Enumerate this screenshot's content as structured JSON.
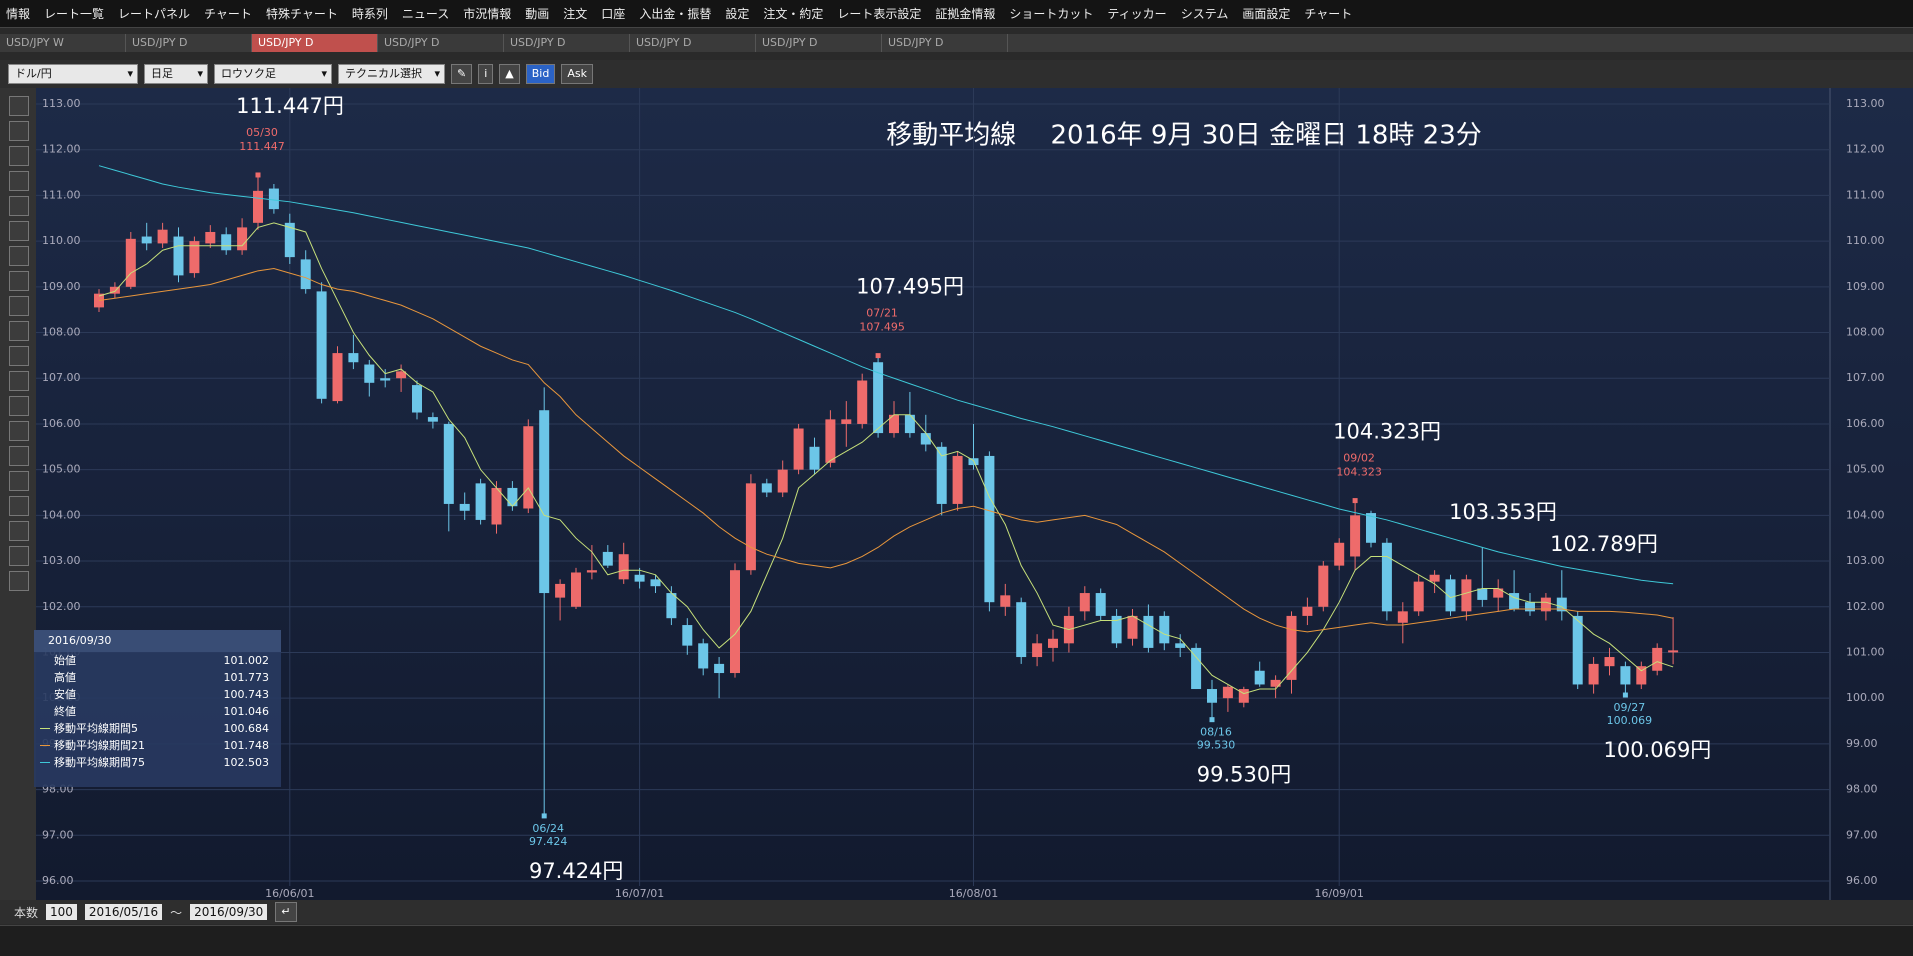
{
  "menu": [
    "情報",
    "レート一覧",
    "レートパネル",
    "チャート",
    "特殊チャート",
    "時系列",
    "ニュース",
    "市況情報",
    "動画",
    "注文",
    "口座",
    "入出金・振替",
    "設定",
    "注文・約定",
    "レート表示設定",
    "証拠金情報",
    "ショートカット",
    "ティッカー",
    "システム",
    "画面設定",
    "チャート"
  ],
  "tabs": [
    "USD/JPY W",
    "USD/JPY D",
    "USD/JPY D",
    "USD/JPY D",
    "USD/JPY D",
    "USD/JPY D",
    "USD/JPY D",
    "USD/JPY D"
  ],
  "toolbar": {
    "pair": "ドル/円",
    "period": "日足",
    "chart_kind": "ロウソク足",
    "technical": "テクニカル選択",
    "bid": "Bid",
    "ask": "Ask"
  },
  "chart_data": {
    "type": "candlestick",
    "title": "移動平均線　 2016年 9月 30日 金曜日 18時 23分",
    "categories": [
      null,
      null,
      null,
      null,
      null,
      null,
      null,
      null,
      null,
      null,
      null,
      null,
      "16/06/01",
      null,
      null,
      null,
      null,
      null,
      null,
      null,
      null,
      null,
      null,
      null,
      null,
      null,
      null,
      null,
      null,
      null,
      null,
      null,
      null,
      null,
      "16/07/01",
      null,
      null,
      null,
      null,
      null,
      null,
      null,
      null,
      null,
      null,
      null,
      null,
      null,
      null,
      null,
      null,
      null,
      null,
      null,
      null,
      "16/08/01",
      null,
      null,
      null,
      null,
      null,
      null,
      null,
      null,
      null,
      null,
      null,
      null,
      null,
      null,
      null,
      null,
      null,
      null,
      null,
      null,
      null,
      null,
      "16/09/01",
      null,
      null,
      null,
      null,
      null,
      null,
      null,
      null,
      null,
      null,
      null,
      null,
      null,
      null,
      null,
      null,
      null,
      null,
      null,
      null,
      null
    ],
    "open": [
      108.55,
      108.85,
      109.0,
      110.1,
      109.95,
      110.1,
      109.3,
      109.95,
      110.15,
      109.8,
      110.4,
      111.15,
      110.4,
      109.6,
      108.9,
      106.5,
      107.55,
      107.3,
      107.0,
      107.0,
      106.85,
      106.15,
      106.0,
      104.25,
      104.7,
      103.8,
      104.6,
      104.15,
      106.3,
      102.2,
      102.0,
      102.75,
      103.2,
      102.6,
      102.7,
      102.6,
      102.3,
      101.6,
      101.2,
      100.75,
      100.55,
      102.8,
      104.7,
      104.5,
      105.0,
      105.5,
      105.15,
      106.0,
      106.0,
      107.35,
      105.8,
      106.2,
      105.8,
      105.5,
      104.25,
      105.25,
      105.3,
      102.0,
      102.1,
      100.9,
      101.1,
      101.2,
      101.9,
      102.3,
      101.8,
      101.3,
      101.8,
      101.8,
      101.2,
      101.1,
      100.2,
      100.0,
      99.9,
      100.6,
      100.25,
      100.4,
      101.8,
      102.0,
      102.9,
      103.1,
      104.05,
      103.4,
      101.65,
      101.9,
      102.55,
      102.6,
      101.9,
      102.4,
      102.2,
      102.3,
      102.1,
      101.9,
      102.2,
      101.8,
      100.3,
      100.7,
      100.7,
      100.3,
      100.6,
      101.002
    ],
    "high": [
      108.95,
      109.1,
      110.2,
      110.4,
      110.4,
      110.3,
      110.1,
      110.35,
      110.3,
      110.5,
      111.447,
      111.25,
      110.6,
      109.8,
      109.1,
      107.7,
      107.95,
      107.4,
      107.2,
      107.3,
      106.95,
      106.25,
      106.05,
      104.5,
      104.8,
      104.75,
      104.75,
      106.1,
      106.8,
      102.6,
      102.85,
      103.35,
      103.35,
      103.4,
      102.85,
      102.7,
      102.45,
      101.75,
      101.3,
      100.9,
      102.95,
      104.9,
      104.8,
      105.2,
      106.0,
      105.7,
      106.3,
      106.5,
      107.1,
      107.495,
      106.5,
      106.7,
      106.2,
      105.6,
      105.4,
      106.0,
      105.4,
      102.5,
      102.2,
      101.4,
      101.5,
      102.0,
      102.45,
      102.4,
      101.95,
      101.95,
      102.05,
      101.9,
      101.4,
      101.2,
      100.4,
      100.3,
      100.25,
      100.8,
      100.5,
      101.9,
      102.2,
      103.0,
      103.5,
      104.323,
      104.1,
      103.5,
      102.1,
      102.7,
      102.8,
      102.7,
      102.7,
      103.3,
      102.6,
      102.8,
      102.3,
      102.3,
      102.8,
      101.9,
      100.9,
      101.1,
      100.8,
      100.8,
      101.2,
      101.773
    ],
    "low": [
      108.45,
      108.75,
      108.95,
      109.8,
      109.85,
      109.1,
      109.2,
      109.85,
      109.7,
      109.7,
      110.25,
      110.6,
      109.5,
      108.85,
      106.45,
      106.45,
      107.2,
      106.6,
      106.8,
      106.7,
      106.1,
      105.9,
      103.65,
      103.9,
      103.8,
      103.6,
      104.1,
      104.05,
      97.424,
      101.7,
      101.95,
      102.6,
      102.85,
      102.5,
      102.4,
      102.3,
      101.6,
      100.95,
      100.5,
      100.0,
      100.45,
      102.7,
      104.4,
      104.4,
      104.9,
      104.9,
      105.05,
      105.5,
      105.9,
      105.7,
      105.7,
      105.7,
      105.4,
      104.0,
      104.1,
      105.0,
      101.9,
      101.8,
      100.75,
      100.7,
      100.8,
      101.0,
      101.7,
      101.7,
      101.1,
      101.15,
      101.0,
      101.05,
      100.9,
      100.2,
      99.53,
      99.7,
      99.8,
      100.25,
      100.0,
      100.1,
      101.6,
      101.9,
      102.8,
      102.8,
      103.3,
      101.7,
      101.2,
      101.8,
      102.3,
      101.8,
      101.7,
      102.0,
      101.9,
      101.9,
      101.8,
      101.7,
      101.7,
      100.2,
      100.1,
      100.5,
      100.069,
      100.2,
      100.5,
      100.743
    ],
    "close": [
      108.85,
      109.0,
      110.05,
      109.95,
      110.25,
      109.25,
      110.0,
      110.2,
      109.8,
      110.3,
      111.1,
      110.7,
      109.65,
      108.95,
      106.55,
      107.55,
      107.35,
      106.9,
      106.95,
      107.15,
      106.25,
      106.05,
      104.25,
      104.1,
      103.9,
      104.6,
      104.2,
      105.95,
      102.3,
      102.5,
      102.75,
      102.8,
      102.9,
      103.15,
      102.55,
      102.45,
      101.75,
      101.15,
      100.65,
      100.55,
      102.8,
      104.7,
      104.5,
      105.0,
      105.9,
      105.0,
      106.1,
      106.1,
      106.95,
      105.8,
      106.2,
      105.8,
      105.55,
      104.25,
      105.3,
      105.1,
      102.1,
      102.25,
      100.9,
      101.2,
      101.3,
      101.8,
      102.3,
      101.8,
      101.2,
      101.8,
      101.1,
      101.2,
      101.1,
      100.2,
      99.9,
      100.25,
      100.2,
      100.3,
      100.4,
      101.8,
      102.0,
      102.9,
      103.4,
      104.0,
      103.4,
      101.9,
      101.9,
      102.55,
      102.7,
      101.9,
      102.6,
      102.15,
      102.4,
      101.95,
      101.9,
      102.2,
      101.9,
      100.3,
      100.75,
      100.9,
      100.3,
      100.7,
      101.1,
      101.046
    ],
    "up_color": "#ee6b6b",
    "down_color": "#6cc6e8",
    "series": [
      {
        "name": "移動平均線期間5",
        "color": "#c6e07a",
        "values": [
          108.8,
          108.9,
          109.3,
          109.5,
          109.8,
          109.9,
          109.9,
          109.9,
          109.9,
          109.9,
          110.3,
          110.4,
          110.3,
          110.2,
          109.4,
          108.7,
          108.0,
          107.5,
          107.1,
          107.2,
          106.9,
          106.7,
          106.1,
          105.7,
          105.0,
          104.6,
          104.2,
          104.6,
          104.0,
          103.9,
          103.5,
          103.2,
          102.7,
          102.8,
          102.8,
          102.7,
          102.3,
          102.0,
          101.5,
          101.1,
          101.4,
          101.9,
          102.7,
          103.5,
          104.6,
          104.9,
          105.2,
          105.4,
          105.6,
          105.9,
          106.2,
          106.2,
          105.8,
          105.3,
          105.4,
          105.2,
          104.4,
          103.8,
          102.9,
          102.3,
          101.6,
          101.5,
          101.6,
          101.7,
          101.7,
          101.8,
          101.6,
          101.4,
          101.3,
          100.9,
          100.5,
          100.3,
          100.1,
          100.2,
          100.2,
          100.6,
          101.0,
          101.5,
          102.1,
          102.8,
          103.1,
          103.1,
          102.9,
          102.7,
          102.5,
          102.2,
          102.3,
          102.4,
          102.4,
          102.2,
          102.1,
          102.1,
          102.0,
          101.7,
          101.4,
          101.2,
          100.9,
          100.6,
          100.8,
          100.684
        ]
      },
      {
        "name": "移動平均線期間21",
        "color": "#e8963c",
        "values": [
          108.7,
          108.75,
          108.8,
          108.85,
          108.9,
          108.95,
          109.0,
          109.05,
          109.15,
          109.25,
          109.35,
          109.4,
          109.3,
          109.2,
          109.05,
          108.95,
          108.9,
          108.8,
          108.7,
          108.6,
          108.45,
          108.3,
          108.1,
          107.9,
          107.7,
          107.55,
          107.4,
          107.3,
          106.9,
          106.6,
          106.2,
          105.9,
          105.6,
          105.3,
          105.05,
          104.8,
          104.55,
          104.3,
          104.05,
          103.75,
          103.5,
          103.3,
          103.15,
          103.05,
          102.95,
          102.9,
          102.85,
          102.95,
          103.1,
          103.3,
          103.55,
          103.75,
          103.9,
          104.05,
          104.15,
          104.2,
          104.1,
          104.0,
          103.9,
          103.85,
          103.9,
          103.95,
          104.0,
          103.9,
          103.8,
          103.6,
          103.4,
          103.2,
          102.95,
          102.7,
          102.45,
          102.2,
          101.95,
          101.75,
          101.6,
          101.5,
          101.45,
          101.5,
          101.55,
          101.6,
          101.65,
          101.6,
          101.6,
          101.65,
          101.7,
          101.75,
          101.8,
          101.85,
          101.9,
          101.95,
          101.95,
          101.95,
          101.95,
          101.9,
          101.9,
          101.9,
          101.88,
          101.85,
          101.82,
          101.748
        ]
      },
      {
        "name": "移動平均線期間75",
        "color": "#3ec8d8",
        "values": [
          111.65,
          111.55,
          111.45,
          111.35,
          111.25,
          111.18,
          111.12,
          111.06,
          111.02,
          110.98,
          110.94,
          110.9,
          110.86,
          110.8,
          110.74,
          110.68,
          110.62,
          110.55,
          110.48,
          110.41,
          110.34,
          110.27,
          110.2,
          110.13,
          110.06,
          109.99,
          109.92,
          109.85,
          109.75,
          109.65,
          109.55,
          109.45,
          109.35,
          109.25,
          109.14,
          109.03,
          108.92,
          108.8,
          108.68,
          108.56,
          108.44,
          108.3,
          108.15,
          108.0,
          107.85,
          107.7,
          107.55,
          107.4,
          107.25,
          107.12,
          107.0,
          106.88,
          106.76,
          106.64,
          106.52,
          106.42,
          106.32,
          106.22,
          106.12,
          106.03,
          105.94,
          105.84,
          105.74,
          105.64,
          105.54,
          105.44,
          105.34,
          105.24,
          105.14,
          105.04,
          104.94,
          104.84,
          104.74,
          104.64,
          104.54,
          104.44,
          104.34,
          104.24,
          104.14,
          104.06,
          103.98,
          103.9,
          103.8,
          103.7,
          103.6,
          103.5,
          103.4,
          103.3,
          103.2,
          103.12,
          103.04,
          102.96,
          102.88,
          102.82,
          102.76,
          102.7,
          102.64,
          102.58,
          102.54,
          102.503
        ]
      }
    ],
    "ylim": [
      96,
      113
    ],
    "yticks": [
      {
        "value": 96,
        "label": "96.00"
      },
      {
        "value": 97,
        "label": "97.00"
      },
      {
        "value": 98,
        "label": "98.00"
      },
      {
        "value": 99,
        "label": "99.00"
      },
      {
        "value": 100,
        "label": "100.00"
      },
      {
        "value": 101,
        "label": "101.00"
      },
      {
        "value": 102,
        "label": "102.00"
      },
      {
        "value": 103,
        "label": "103.00"
      },
      {
        "value": 104,
        "label": "104.00"
      },
      {
        "value": 105,
        "label": "105.00"
      },
      {
        "value": 106,
        "label": "106.00"
      },
      {
        "value": 107,
        "label": "107.00"
      },
      {
        "value": 108,
        "label": "108.00"
      },
      {
        "value": 109,
        "label": "109.00"
      },
      {
        "value": 110,
        "label": "110.00"
      },
      {
        "value": 111,
        "label": "111.00"
      },
      {
        "value": 112,
        "label": "112.00"
      },
      {
        "value": 113,
        "label": "113.00"
      }
    ],
    "grid": true,
    "extremes": [
      {
        "date": "05/30",
        "value": 111.447,
        "label": "111.447円"
      },
      {
        "date": "06/24",
        "value": 97.424,
        "label": "97.424円"
      },
      {
        "date": "07/21",
        "value": 107.495,
        "label": "107.495円"
      },
      {
        "date": "08/16",
        "value": 99.53,
        "value_label": "99.530",
        "label": "99.530円"
      },
      {
        "date": "09/02",
        "value": 104.323,
        "label": "104.323円"
      },
      {
        "date": "09/27",
        "value": 100.069,
        "label": "100.069円"
      }
    ],
    "annotations": [
      {
        "label": "103.353円"
      },
      {
        "label": "102.789円"
      }
    ]
  },
  "info_panel": {
    "date": "2016/09/30",
    "labels": [
      "始値",
      "高値",
      "安値",
      "終値"
    ]
  },
  "bottom_bar": {
    "count_label": "本数",
    "count": 100,
    "from": "2016/05/16",
    "sep": "～",
    "to": "2016/09/30"
  }
}
